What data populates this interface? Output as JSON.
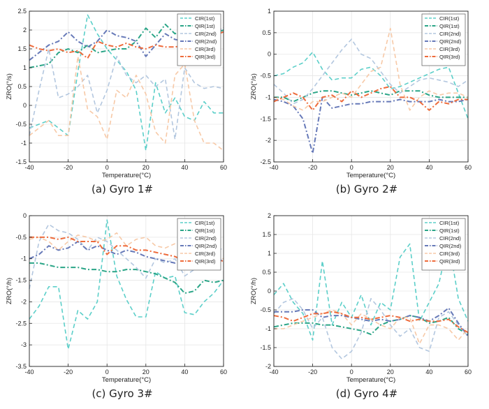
{
  "colors": {
    "cir1": "#5ccfc9",
    "qir1": "#2aa587",
    "cir2": "#b3c7df",
    "qir2": "#6679b8",
    "cir3": "#f7c9a7",
    "qir3": "#ee6b3b"
  },
  "chart_data": [
    {
      "type": "line",
      "caption": "(a) Gyro 1#",
      "xlabel": "Temperature(°C)",
      "ylabel": "ZRO(°/s)",
      "xlim": [
        -40,
        60
      ],
      "ylim": [
        -1.5,
        2.5
      ],
      "xticks": [
        -40,
        -20,
        0,
        20,
        40,
        60
      ],
      "yticks": [
        -1.5,
        -1,
        -0.5,
        0,
        0.5,
        1,
        1.5,
        2,
        2.5
      ],
      "grid": true,
      "legend": "top-right",
      "x": [
        -40,
        -35,
        -30,
        -25,
        -20,
        -15,
        -10,
        -5,
        0,
        5,
        10,
        15,
        20,
        25,
        30,
        35,
        40,
        45,
        50,
        55,
        60
      ],
      "series": [
        {
          "name": "CIR(1st)",
          "style": "dashed",
          "values": [
            -0.6,
            -0.5,
            -0.4,
            -0.6,
            -0.8,
            0.9,
            2.4,
            1.9,
            1.5,
            1.2,
            0.9,
            0.4,
            -1.2,
            0.6,
            -0.2,
            0.2,
            -0.3,
            -0.4,
            0.1,
            -0.2,
            -0.2
          ]
        },
        {
          "name": "QIR(1st)",
          "style": "dashdot",
          "values": [
            1.0,
            1.05,
            1.1,
            1.4,
            1.5,
            1.4,
            1.6,
            1.4,
            1.45,
            1.5,
            1.5,
            1.7,
            2.05,
            1.8,
            2.15,
            1.9,
            2.05,
            1.95,
            2.0,
            1.9,
            2.0
          ]
        },
        {
          "name": "CIR(2nd)",
          "style": "dashed",
          "values": [
            -0.8,
            0.4,
            1.5,
            0.2,
            0.3,
            0.5,
            0.8,
            -0.2,
            0.4,
            1.3,
            0.8,
            0.6,
            0.8,
            0.5,
            0.7,
            -0.9,
            1.0,
            0.6,
            0.45,
            0.5,
            0.45
          ]
        },
        {
          "name": "QIR(2nd)",
          "style": "dashdot",
          "values": [
            1.2,
            1.4,
            1.6,
            1.7,
            1.95,
            1.7,
            1.55,
            1.7,
            2.0,
            1.85,
            1.8,
            1.7,
            1.3,
            1.6,
            1.9,
            1.75,
            1.7,
            1.85,
            1.9,
            1.95,
            2.05
          ]
        },
        {
          "name": "CIR(3rd)",
          "style": "dashed",
          "values": [
            -0.8,
            -0.6,
            -0.4,
            -0.8,
            -0.8,
            1.3,
            -0.1,
            -0.3,
            -0.9,
            0.4,
            0.2,
            0.8,
            0.3,
            -0.7,
            -1.0,
            0.8,
            1.1,
            -0.4,
            -1.0,
            -1.0,
            -1.2
          ]
        },
        {
          "name": "QIR(3rd)",
          "style": "dashdot",
          "values": [
            1.6,
            1.5,
            1.45,
            1.5,
            1.4,
            1.45,
            1.25,
            1.7,
            1.6,
            1.55,
            1.65,
            1.55,
            1.5,
            1.6,
            1.55,
            1.55,
            1.6,
            1.7,
            1.75,
            1.85,
            1.95
          ]
        }
      ]
    },
    {
      "type": "line",
      "caption": "(b) Gyro 2#",
      "xlabel": "Temperature(°C)",
      "ylabel": "ZRO(°/s)",
      "xlim": [
        -40,
        60
      ],
      "ylim": [
        -2.5,
        1
      ],
      "xticks": [
        -40,
        -20,
        0,
        20,
        40,
        60
      ],
      "yticks": [
        -2.5,
        -2,
        -1.5,
        -1,
        -0.5,
        0,
        0.5,
        1
      ],
      "grid": true,
      "legend": "top-right",
      "x": [
        -40,
        -35,
        -30,
        -25,
        -20,
        -15,
        -10,
        -5,
        0,
        5,
        10,
        15,
        20,
        25,
        30,
        35,
        40,
        45,
        50,
        55,
        60
      ],
      "series": [
        {
          "name": "CIR(1st)",
          "style": "dashed",
          "values": [
            -0.5,
            -0.45,
            -0.3,
            -0.2,
            0.05,
            -0.35,
            -0.6,
            -0.55,
            -0.55,
            -0.35,
            -0.3,
            -0.5,
            -0.8,
            -0.75,
            -0.65,
            -0.55,
            -0.45,
            -0.35,
            -0.3,
            -0.9,
            -1.5
          ]
        },
        {
          "name": "QIR(1st)",
          "style": "dashdot",
          "values": [
            -1.0,
            -1.0,
            -1.1,
            -1.0,
            -0.9,
            -0.85,
            -0.85,
            -0.9,
            -0.95,
            -0.9,
            -0.85,
            -0.9,
            -0.95,
            -0.85,
            -0.85,
            -0.85,
            -0.95,
            -1.0,
            -1.0,
            -1.0,
            -1.0
          ]
        },
        {
          "name": "CIR(2nd)",
          "style": "dashed",
          "values": [
            -0.7,
            -0.9,
            -1.15,
            -1.05,
            -0.8,
            -0.5,
            -0.2,
            0.1,
            0.35,
            0.0,
            -0.1,
            -0.4,
            -0.7,
            -0.9,
            -0.75,
            -0.6,
            -0.55,
            -0.6,
            -0.65,
            -0.75,
            -0.6
          ]
        },
        {
          "name": "QIR(2nd)",
          "style": "dashdot",
          "values": [
            -1.05,
            -1.1,
            -1.2,
            -1.5,
            -2.3,
            -1.0,
            -1.25,
            -1.2,
            -1.15,
            -1.15,
            -1.1,
            -1.1,
            -1.1,
            -1.05,
            -1.1,
            -1.1,
            -1.1,
            -1.05,
            -1.1,
            -1.1,
            -1.05
          ]
        },
        {
          "name": "CIR(3rd)",
          "style": "dashed",
          "values": [
            -1.0,
            -1.05,
            -1.2,
            -1.3,
            -1.1,
            -1.1,
            -1.0,
            -0.9,
            -1.0,
            -0.7,
            -0.4,
            -0.3,
            0.6,
            -0.7,
            -1.3,
            -1.0,
            -0.85,
            -0.95,
            -0.9,
            -0.9,
            -1.0
          ]
        },
        {
          "name": "QIR(3rd)",
          "style": "dashdot",
          "values": [
            -1.1,
            -1.0,
            -0.9,
            -1.0,
            -1.3,
            -1.0,
            -0.95,
            -1.1,
            -0.85,
            -1.0,
            -0.9,
            -0.8,
            -0.75,
            -1.0,
            -1.0,
            -1.1,
            -1.3,
            -1.1,
            -1.15,
            -1.05,
            -1.05
          ]
        }
      ]
    },
    {
      "type": "line",
      "caption": "(c) Gyro 3#",
      "xlabel": "Temperature(°C)",
      "ylabel": "ZRO(°/h)",
      "xlim": [
        -40,
        60
      ],
      "ylim": [
        -3.5,
        0
      ],
      "xticks": [
        -40,
        -20,
        0,
        20,
        40,
        60
      ],
      "yticks": [
        -3.5,
        -3,
        -2.5,
        -2,
        -1.5,
        -1,
        -0.5,
        0
      ],
      "grid": true,
      "legend": "top-right",
      "x": [
        -40,
        -35,
        -30,
        -25,
        -20,
        -15,
        -10,
        -5,
        0,
        5,
        10,
        15,
        20,
        25,
        30,
        35,
        40,
        45,
        50,
        55,
        60
      ],
      "series": [
        {
          "name": "CIR(1st)",
          "style": "dashed",
          "values": [
            -2.4,
            -2.1,
            -1.65,
            -1.65,
            -3.1,
            -2.2,
            -2.4,
            -2.0,
            -0.1,
            -1.4,
            -1.95,
            -2.35,
            -2.35,
            -1.3,
            -1.45,
            -1.4,
            -2.25,
            -2.3,
            -2.0,
            -1.8,
            -1.5
          ]
        },
        {
          "name": "QIR(1st)",
          "style": "dashdot",
          "values": [
            -1.1,
            -1.1,
            -1.15,
            -1.2,
            -1.2,
            -1.2,
            -1.25,
            -1.25,
            -1.3,
            -1.3,
            -1.25,
            -1.25,
            -1.3,
            -1.35,
            -1.45,
            -1.55,
            -1.8,
            -1.75,
            -1.5,
            -1.55,
            -1.5
          ]
        },
        {
          "name": "CIR(2nd)",
          "style": "dashed",
          "values": [
            -1.7,
            -0.6,
            -0.2,
            -0.35,
            -0.4,
            -0.55,
            -0.8,
            -0.5,
            -0.6,
            -0.8,
            -1.0,
            -1.2,
            -1.45,
            -1.0,
            -1.1,
            -1.0,
            -1.4,
            -1.25,
            -0.8,
            -0.7,
            -0.8
          ]
        },
        {
          "name": "QIR(2nd)",
          "style": "dashdot",
          "values": [
            -1.0,
            -0.9,
            -0.7,
            -0.8,
            -0.75,
            -0.6,
            -0.8,
            -0.7,
            -0.8,
            -0.9,
            -0.8,
            -0.85,
            -0.95,
            -1.0,
            -1.05,
            -1.1,
            -1.05,
            -1.2,
            -1.2,
            -1.0,
            -1.05
          ]
        },
        {
          "name": "CIR(3rd)",
          "style": "dashed",
          "values": [
            -0.55,
            -0.5,
            -0.6,
            -0.8,
            -0.6,
            -0.45,
            -0.5,
            -0.6,
            -0.55,
            -0.4,
            -0.7,
            -0.55,
            -0.5,
            -0.7,
            -0.75,
            -0.65,
            -0.6,
            -0.7,
            -0.8,
            -0.95,
            -1.0
          ]
        },
        {
          "name": "QIR(3rd)",
          "style": "dashdot",
          "values": [
            -0.5,
            -0.5,
            -0.5,
            -0.55,
            -0.5,
            -0.6,
            -0.6,
            -0.6,
            -0.9,
            -0.7,
            -0.7,
            -0.8,
            -0.8,
            -0.85,
            -0.9,
            -0.95,
            -1.05,
            -1.05,
            -1.0,
            -1.05,
            -1.05
          ]
        }
      ]
    },
    {
      "type": "line",
      "caption": "(d) Gyro 4#",
      "xlabel": "Temperature(°C)",
      "ylabel": "ZRO(°/h)",
      "xlim": [
        -40,
        60
      ],
      "ylim": [
        -2,
        2
      ],
      "xticks": [
        -40,
        -20,
        0,
        20,
        40,
        60
      ],
      "yticks": [
        -2,
        -1.5,
        -1,
        -0.5,
        0,
        0.5,
        1,
        1.5,
        2
      ],
      "grid": true,
      "legend": "top-right",
      "x": [
        -40,
        -35,
        -30,
        -25,
        -20,
        -15,
        -10,
        -5,
        0,
        5,
        10,
        15,
        20,
        25,
        30,
        35,
        40,
        45,
        50,
        55,
        60
      ],
      "series": [
        {
          "name": "CIR(1st)",
          "style": "dashed",
          "values": [
            -0.1,
            0.2,
            -0.3,
            -0.6,
            -1.3,
            0.8,
            -0.9,
            -0.3,
            -0.7,
            -0.1,
            -0.9,
            -0.3,
            -0.5,
            0.9,
            1.25,
            -0.8,
            -0.3,
            0.2,
            1.35,
            -0.2,
            -0.8
          ]
        },
        {
          "name": "QIR(1st)",
          "style": "dashdot",
          "values": [
            -0.95,
            -0.9,
            -0.85,
            -0.85,
            -0.85,
            -0.9,
            -0.9,
            -0.95,
            -1.0,
            -1.05,
            -1.15,
            -0.9,
            -0.8,
            -0.75,
            -0.65,
            -0.7,
            -0.85,
            -0.8,
            -0.7,
            -1.0,
            -1.15
          ]
        },
        {
          "name": "CIR(2nd)",
          "style": "dashed",
          "values": [
            -0.6,
            -0.3,
            -0.2,
            -0.5,
            -1.0,
            -0.7,
            -1.5,
            -1.8,
            -1.6,
            -1.1,
            -0.2,
            -0.5,
            -0.9,
            -1.2,
            -1.0,
            -1.5,
            -1.6,
            -0.7,
            -0.55,
            -0.9,
            -1.2
          ]
        },
        {
          "name": "QIR(2nd)",
          "style": "dashdot",
          "values": [
            -0.55,
            -0.55,
            -0.55,
            -0.5,
            -0.5,
            -0.7,
            -0.65,
            -0.65,
            -0.7,
            -0.75,
            -0.8,
            -0.75,
            -0.8,
            -0.75,
            -0.65,
            -0.7,
            -0.8,
            -0.65,
            -0.45,
            -0.85,
            -1.2
          ]
        },
        {
          "name": "CIR(3rd)",
          "style": "dashed",
          "values": [
            -1.0,
            -1.0,
            -0.9,
            -0.8,
            -0.7,
            -0.6,
            -0.5,
            -0.6,
            -0.9,
            -0.6,
            -0.75,
            -0.9,
            -1.0,
            -0.7,
            -0.7,
            -1.4,
            -0.9,
            -0.9,
            -1.0,
            -1.3,
            -1.0
          ]
        },
        {
          "name": "QIR(3rd)",
          "style": "dashdot",
          "values": [
            -0.65,
            -0.7,
            -0.8,
            -0.7,
            -0.6,
            -0.6,
            -0.55,
            -0.6,
            -0.7,
            -0.7,
            -0.75,
            -0.7,
            -0.65,
            -0.7,
            -0.8,
            -0.75,
            -0.8,
            -0.8,
            -0.75,
            -0.95,
            -1.1
          ]
        }
      ]
    }
  ]
}
